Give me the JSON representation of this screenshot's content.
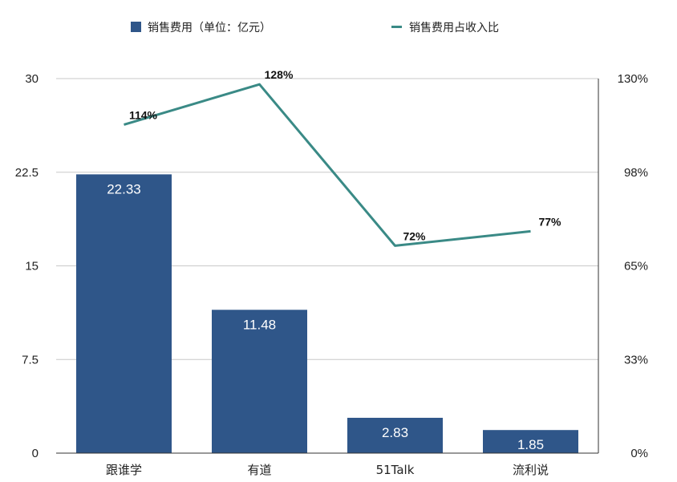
{
  "chart_data": {
    "type": "bar",
    "categories": [
      "跟谁学",
      "有道",
      "51Talk",
      "流利说"
    ],
    "series": [
      {
        "name": "销售费用（单位：亿元）",
        "type": "bar",
        "axis": "left",
        "color": "#2f5689",
        "values": [
          22.33,
          11.48,
          2.83,
          1.85
        ],
        "labels": [
          "22.33",
          "11.48",
          "2.83",
          "1.85"
        ]
      },
      {
        "name": "销售费用占收入比",
        "type": "line",
        "axis": "right",
        "color": "#3a8a86",
        "values": [
          114,
          128,
          72,
          77
        ],
        "labels": [
          "114%",
          "128%",
          "72%",
          "77%"
        ]
      }
    ],
    "y_left": {
      "ylim": [
        0,
        30
      ],
      "ticks": [
        "0",
        "7.5",
        "15",
        "22.5",
        "30"
      ]
    },
    "y_right": {
      "ylim": [
        0,
        130
      ],
      "ticks": [
        "0%",
        "33%",
        "65%",
        "98%",
        "130%"
      ]
    },
    "grid": true,
    "legend": "top-center"
  }
}
